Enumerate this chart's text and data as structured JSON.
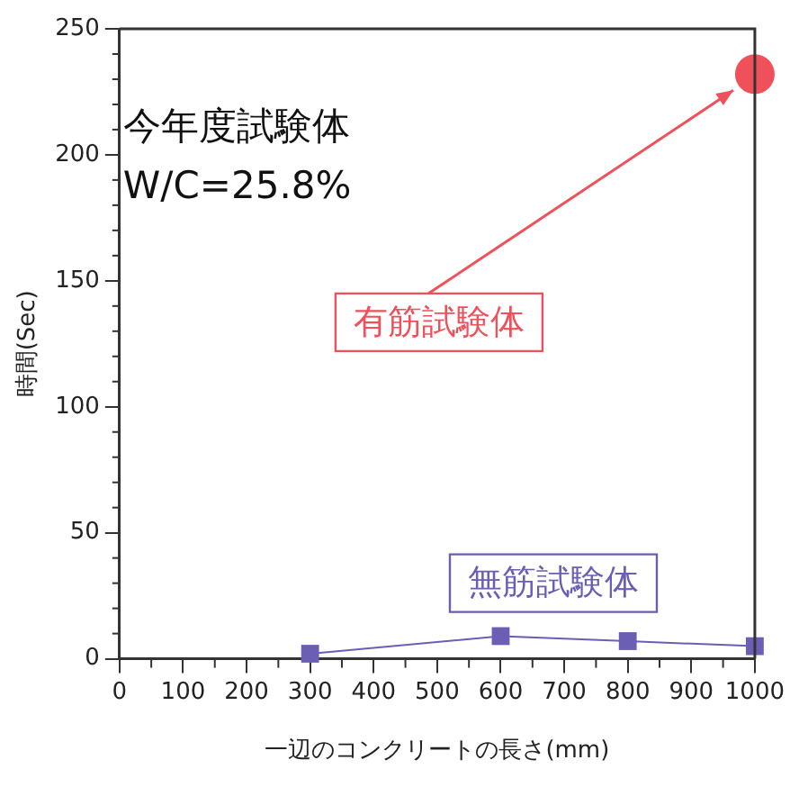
{
  "chart_data": {
    "type": "line",
    "xlabel": "一辺のコンクリートの長さ(mm)",
    "ylabel": "時間(Sec)",
    "annotations": [
      "今年度試験体",
      "W/C=25.8%"
    ],
    "xlim": [
      0,
      1000
    ],
    "xticks": [
      0,
      100,
      200,
      300,
      400,
      500,
      600,
      700,
      800,
      900,
      1000
    ],
    "ylim": [
      0,
      250
    ],
    "yticks": [
      0,
      50,
      100,
      150,
      200,
      250
    ],
    "grid": false,
    "legend": false,
    "series": [
      {
        "name": "有筋試験体",
        "type": "scatter",
        "color": "#f0505a",
        "marker": "circle",
        "x": [
          1000
        ],
        "values": [
          232
        ]
      },
      {
        "name": "無筋試験体",
        "color": "#6a5fb5",
        "marker": "square",
        "x": [
          300,
          600,
          800,
          1000
        ],
        "values": [
          2,
          9,
          7,
          5
        ]
      }
    ]
  }
}
